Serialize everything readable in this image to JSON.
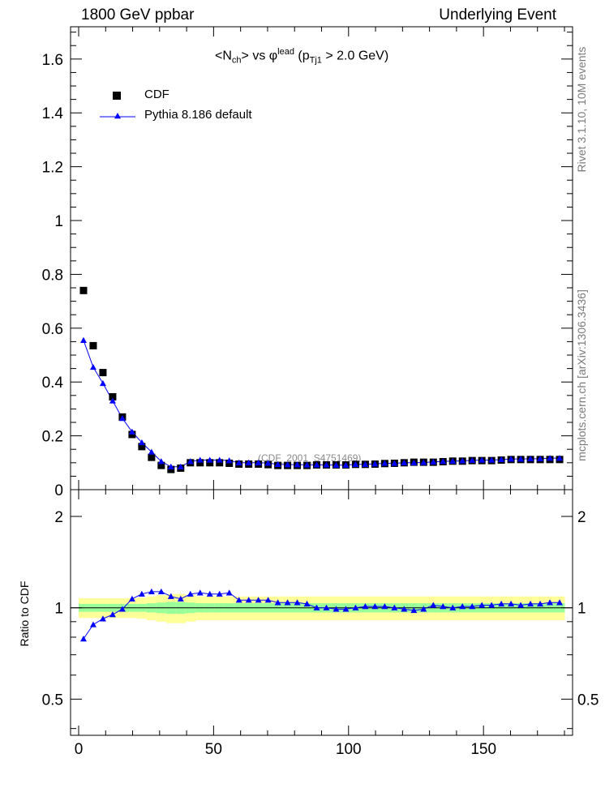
{
  "header": {
    "left": "1800 GeV ppbar",
    "right": "Underlying Event"
  },
  "side_labels": {
    "rivet": "Rivet 3.1.10, 10M events",
    "mcplots": "mcplots.cern.ch [arXiv:1306.3436]"
  },
  "title": {
    "main": "<N",
    "main_sub": "ch",
    "mid": "> vs φ",
    "mid_sup": "lead",
    "paren_open": "(p",
    "paren_sub": "Tj1",
    "paren_close": " > 2.0 GeV)"
  },
  "reference_label": "(CDF_2001_S4751469)",
  "ratio_ylabel": "Ratio to CDF",
  "legend": {
    "cdf": "CDF",
    "pythia": "Pythia 8.186 default"
  },
  "colors": {
    "data": "#000000",
    "mc": "#0000ff",
    "band_inner": "#99ff99",
    "band_outer": "#ffff99"
  },
  "chart_data": {
    "type": "scatter",
    "x": [
      1.8,
      5.4,
      9.0,
      12.6,
      16.2,
      19.8,
      23.4,
      27.0,
      30.6,
      34.2,
      37.8,
      41.4,
      45.0,
      48.6,
      52.2,
      55.8,
      59.4,
      63.0,
      66.6,
      70.2,
      73.8,
      77.4,
      81.0,
      84.6,
      88.2,
      91.8,
      95.4,
      99.0,
      102.6,
      106.2,
      109.8,
      113.4,
      117.0,
      120.6,
      124.2,
      127.8,
      131.4,
      135.0,
      138.6,
      142.2,
      145.8,
      149.4,
      153.0,
      156.6,
      160.2,
      163.8,
      167.4,
      171.0,
      174.6,
      178.2
    ],
    "series": [
      {
        "name": "CDF",
        "values": [
          0.74,
          0.535,
          0.435,
          0.345,
          0.27,
          0.205,
          0.16,
          0.12,
          0.09,
          0.075,
          0.08,
          0.1,
          0.1,
          0.1,
          0.1,
          0.098,
          0.095,
          0.095,
          0.095,
          0.093,
          0.09,
          0.09,
          0.09,
          0.09,
          0.092,
          0.092,
          0.092,
          0.092,
          0.094,
          0.094,
          0.095,
          0.097,
          0.098,
          0.1,
          0.102,
          0.102,
          0.102,
          0.104,
          0.106,
          0.106,
          0.108,
          0.108,
          0.108,
          0.11,
          0.112,
          0.112,
          0.112,
          0.112,
          0.112,
          0.112
        ]
      },
      {
        "name": "Pythia 8.186 default",
        "values": [
          0.555,
          0.455,
          0.395,
          0.33,
          0.265,
          0.215,
          0.175,
          0.14,
          0.105,
          0.085,
          0.085,
          0.105,
          0.11,
          0.11,
          0.11,
          0.108,
          0.1,
          0.1,
          0.1,
          0.099,
          0.094,
          0.093,
          0.093,
          0.092,
          0.092,
          0.092,
          0.091,
          0.091,
          0.094,
          0.094,
          0.096,
          0.098,
          0.098,
          0.1,
          0.1,
          0.101,
          0.103,
          0.105,
          0.106,
          0.107,
          0.109,
          0.11,
          0.11,
          0.112,
          0.114,
          0.114,
          0.115,
          0.115,
          0.117,
          0.117
        ]
      }
    ],
    "ratio": [
      0.79,
      0.88,
      0.92,
      0.95,
      0.99,
      1.07,
      1.11,
      1.13,
      1.13,
      1.09,
      1.07,
      1.11,
      1.12,
      1.11,
      1.11,
      1.12,
      1.06,
      1.06,
      1.06,
      1.06,
      1.04,
      1.04,
      1.04,
      1.03,
      1.0,
      1.0,
      0.99,
      0.99,
      1.0,
      1.01,
      1.01,
      1.01,
      1.0,
      0.99,
      0.98,
      0.99,
      1.02,
      1.01,
      1.0,
      1.01,
      1.01,
      1.02,
      1.02,
      1.03,
      1.03,
      1.02,
      1.03,
      1.03,
      1.04,
      1.04
    ],
    "band_inner": [
      0.03,
      0.03,
      0.03,
      0.03,
      0.03,
      0.03,
      0.03,
      0.035,
      0.04,
      0.045,
      0.045,
      0.04,
      0.035,
      0.035,
      0.035,
      0.035,
      0.035,
      0.035,
      0.035,
      0.035,
      0.035,
      0.035,
      0.035,
      0.035,
      0.035,
      0.035,
      0.035,
      0.035,
      0.035,
      0.035,
      0.035,
      0.035,
      0.035,
      0.035,
      0.035,
      0.035,
      0.035,
      0.035,
      0.035,
      0.035,
      0.035,
      0.035,
      0.035,
      0.035,
      0.035,
      0.035,
      0.035,
      0.035,
      0.035,
      0.035
    ],
    "band_outer": [
      0.075,
      0.075,
      0.075,
      0.075,
      0.075,
      0.075,
      0.08,
      0.09,
      0.1,
      0.11,
      0.11,
      0.1,
      0.09,
      0.09,
      0.09,
      0.09,
      0.09,
      0.09,
      0.09,
      0.09,
      0.09,
      0.09,
      0.09,
      0.09,
      0.09,
      0.09,
      0.09,
      0.09,
      0.09,
      0.09,
      0.09,
      0.09,
      0.09,
      0.09,
      0.09,
      0.09,
      0.09,
      0.09,
      0.09,
      0.09,
      0.09,
      0.09,
      0.09,
      0.09,
      0.09,
      0.09,
      0.09,
      0.09,
      0.09,
      0.09
    ],
    "xlim": [
      -3,
      183
    ],
    "ylim": [
      0,
      1.72
    ],
    "ratio_ylim": [
      0.38,
      2.45
    ],
    "xticks": [
      0,
      50,
      100,
      150
    ],
    "xtick_labels": [
      "0",
      "50",
      "100",
      "150"
    ],
    "yticks": [
      0,
      0.2,
      0.4,
      0.6,
      0.8,
      1,
      1.2,
      1.4,
      1.6
    ],
    "ytick_labels": [
      "0",
      "0.2",
      "0.4",
      "0.6",
      "0.8",
      "1",
      "1.2",
      "1.4",
      "1.6"
    ],
    "ratio_yticks": [
      0.5,
      1,
      2
    ],
    "ratio_ytick_labels": [
      "0.5",
      "1",
      "2"
    ],
    "ratio_scale": "log",
    "legend_position": "top-left",
    "grid": false
  }
}
